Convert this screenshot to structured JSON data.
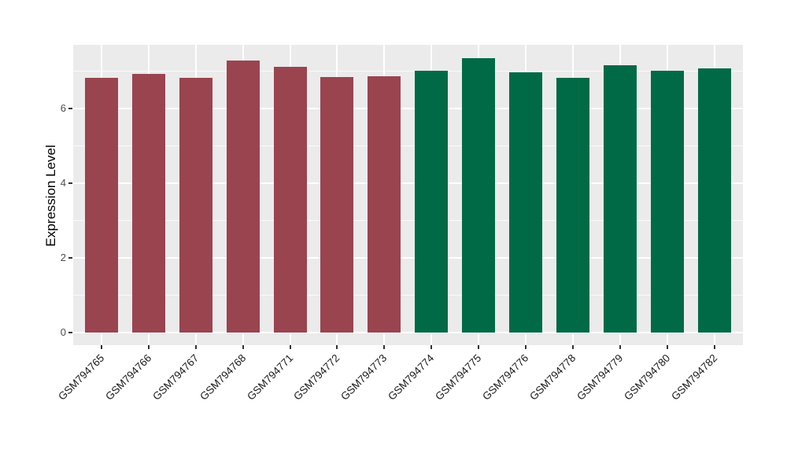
{
  "chart_data": {
    "type": "bar",
    "title": "",
    "xlabel": "",
    "ylabel": "Expression Level",
    "categories": [
      "GSM794765",
      "GSM794766",
      "GSM794767",
      "GSM794768",
      "GSM794771",
      "GSM794772",
      "GSM794773",
      "GSM794774",
      "GSM794775",
      "GSM794776",
      "GSM794778",
      "GSM794779",
      "GSM794780",
      "GSM794782"
    ],
    "values": [
      6.82,
      6.93,
      6.82,
      7.28,
      7.12,
      6.84,
      6.86,
      7.02,
      7.35,
      6.96,
      6.82,
      7.16,
      7.02,
      7.07
    ],
    "bar_colors": [
      "#9A4450",
      "#9A4450",
      "#9A4450",
      "#9A4450",
      "#9A4450",
      "#9A4450",
      "#9A4450",
      "#006A47",
      "#006A47",
      "#006A47",
      "#006A47",
      "#006A47",
      "#006A47",
      "#006A47"
    ],
    "group_colors": {
      "group1": "#9A4450",
      "group2": "#006A47"
    },
    "y_ticks": [
      0,
      2,
      4,
      6
    ],
    "y_minor_ticks": [
      1,
      3,
      5,
      7
    ],
    "ylim": [
      -0.37,
      7.71
    ],
    "x_tick_rotation_deg": 45,
    "legend_position": "none",
    "panel_background": "#EBEBEB",
    "gridline_color": "#FFFFFF",
    "axis_text_color_y": "#4D4D4D",
    "axis_text_color_x": "#1a1a1a",
    "tick_mark_color": "#333333"
  }
}
